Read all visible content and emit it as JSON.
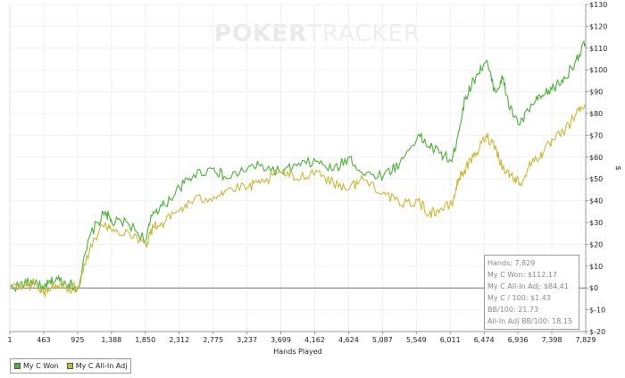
{
  "watermark": {
    "bold": "POKER",
    "thin": "TRACKER"
  },
  "legend": [
    {
      "label": "My C Won",
      "color": "#4caf3a"
    },
    {
      "label": "My C All-In Adj",
      "color": "#c8b83a"
    }
  ],
  "stats": {
    "hands": "Hands: 7,829",
    "won": "My C Won: $112.17",
    "allin": "My C All-In Adj: $84.41",
    "per100": "My C / 100: $1.43",
    "bb100": "BB/100: 21.73",
    "allin_bb100": "All-In Adj BB/100: 18.15"
  },
  "chart_data": {
    "type": "line",
    "xlabel": "Hands Played",
    "ylabel": "$",
    "xlim": [
      1,
      7829
    ],
    "ylim": [
      -20,
      130
    ],
    "xticks": [
      "1",
      "463",
      "925",
      "1,388",
      "1,850",
      "2,312",
      "2,775",
      "3,237",
      "3,699",
      "4,162",
      "4,624",
      "5,087",
      "5,549",
      "6,011",
      "6,474",
      "6,936",
      "7,398",
      "7,829"
    ],
    "yticks": [
      "$-20",
      "$-10",
      "$0",
      "$10",
      "$20",
      "$30",
      "$40",
      "$50",
      "$60",
      "$70",
      "$80",
      "$90",
      "$100",
      "$110",
      "$120",
      "$130"
    ],
    "grid": true,
    "legend_position": "bottom-left",
    "series": [
      {
        "name": "My C Won",
        "color": "#4caf3a",
        "x": [
          1,
          200,
          350,
          463,
          520,
          650,
          800,
          925,
          1100,
          1300,
          1388,
          1600,
          1850,
          1950,
          2100,
          2312,
          2500,
          2775,
          2950,
          3237,
          3400,
          3699,
          3900,
          4162,
          4400,
          4624,
          4800,
          5087,
          5300,
          5549,
          5700,
          5850,
          6011,
          6100,
          6200,
          6350,
          6474,
          6600,
          6700,
          6800,
          6936,
          7100,
          7250,
          7398,
          7550,
          7700,
          7829
        ],
        "y": [
          0,
          2,
          3,
          -1,
          2,
          4,
          2,
          0,
          25,
          35,
          30,
          30,
          22,
          35,
          38,
          46,
          52,
          55,
          50,
          55,
          56,
          53,
          56,
          58,
          54,
          60,
          52,
          52,
          57,
          70,
          65,
          62,
          58,
          72,
          88,
          98,
          104,
          90,
          96,
          82,
          75,
          84,
          88,
          92,
          96,
          105,
          112.17
        ]
      },
      {
        "name": "My C All-In Adj",
        "color": "#c8b83a",
        "x": [
          1,
          200,
          350,
          463,
          520,
          650,
          800,
          925,
          1100,
          1300,
          1388,
          1600,
          1850,
          1950,
          2100,
          2312,
          2500,
          2775,
          2950,
          3237,
          3400,
          3699,
          3900,
          4162,
          4400,
          4624,
          4800,
          5087,
          5300,
          5549,
          5700,
          5850,
          6011,
          6100,
          6200,
          6350,
          6474,
          6600,
          6700,
          6800,
          6936,
          7100,
          7250,
          7398,
          7550,
          7700,
          7829
        ],
        "y": [
          0,
          1,
          2,
          -3,
          0,
          1,
          0,
          0,
          20,
          30,
          26,
          26,
          20,
          28,
          30,
          36,
          40,
          42,
          45,
          46,
          48,
          53,
          50,
          54,
          48,
          46,
          50,
          44,
          38,
          40,
          34,
          36,
          38,
          50,
          55,
          62,
          70,
          65,
          55,
          52,
          48,
          58,
          62,
          68,
          72,
          80,
          84.41
        ]
      }
    ]
  }
}
